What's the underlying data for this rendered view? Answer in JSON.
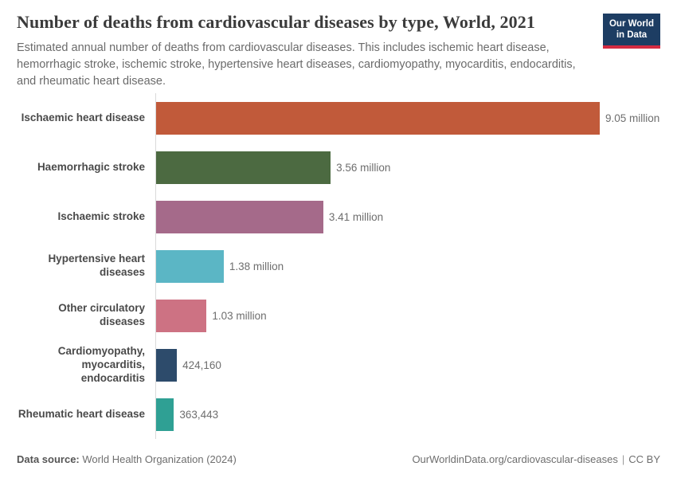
{
  "header": {
    "title": "Number of deaths from cardiovascular diseases by type, World, 2021",
    "subtitle": "Estimated annual number of deaths from cardiovascular diseases. This includes ischemic heart disease, hemorrhagic stroke, ischemic stroke, hypertensive heart diseases, cardiomyopathy, myocarditis, endocarditis, and rheumatic heart disease.",
    "logo": {
      "line1": "Our World",
      "line2": "in Data"
    }
  },
  "chart_data": {
    "type": "bar",
    "orientation": "horizontal",
    "title": "Number of deaths from cardiovascular diseases by type, World, 2021",
    "categories": [
      "Ischaemic heart disease",
      "Haemorrhagic stroke",
      "Ischaemic stroke",
      "Hypertensive heart diseases",
      "Other circulatory diseases",
      "Cardiomyopathy, myocarditis, endocarditis",
      "Rheumatic heart disease"
    ],
    "values": [
      9050000,
      3560000,
      3410000,
      1380000,
      1030000,
      424160,
      363443
    ],
    "value_labels": [
      "9.05 million",
      "3.56 million",
      "3.41 million",
      "1.38 million",
      "1.03 million",
      "424,160",
      "363,443"
    ],
    "bar_colors": [
      "#C15A3A",
      "#4C6A41",
      "#A56A8A",
      "#5BB6C5",
      "#CD7283",
      "#2D4B6B",
      "#2FA094"
    ],
    "xlim": [
      0,
      9050000
    ],
    "unit": "deaths",
    "grid": false,
    "legend": "none"
  },
  "footer": {
    "source_label": "Data source:",
    "source_value": "World Health Organization (2024)",
    "url": "OurWorldinData.org/cardiovascular-diseases",
    "separator": "|",
    "license": "CC BY"
  },
  "colors": {
    "logo_blue": "#1D3D63",
    "logo_red_stripe": "#D42B42",
    "axis_line": "#D9D9D9",
    "title_text": "#3B3B3B",
    "subtitle_text": "#6B6B6B",
    "value_text": "#6E6E6E"
  }
}
